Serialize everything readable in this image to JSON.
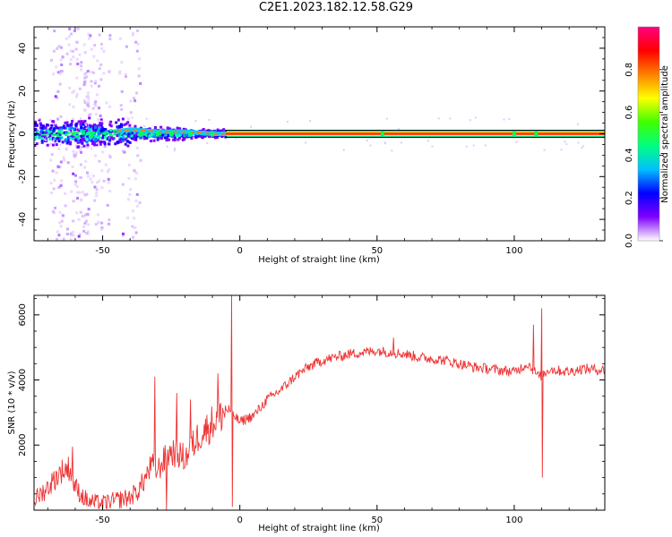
{
  "title": "C2E1.2023.182.12.58.G29",
  "chart_data": [
    {
      "type": "heatmap",
      "xlabel": "Height of straight line (km)",
      "ylabel": "Frequency (Hz)",
      "xlim": [
        -75,
        133
      ],
      "ylim": [
        -50,
        50
      ],
      "xticks": [
        -50,
        0,
        50,
        100
      ],
      "yticks": [
        -40,
        -20,
        0,
        20,
        40
      ],
      "colorbar": {
        "label": "Normalized spectral amplitude",
        "range": [
          0,
          1
        ],
        "ticks": [
          "0.0",
          "0.2",
          "0.4",
          "0.6",
          "0.8"
        ],
        "colors": [
          "#ffffff",
          "#8000ff",
          "#0000ff",
          "#00c0ff",
          "#00ff80",
          "#40ff00",
          "#ffff00",
          "#ff8000",
          "#ff0000",
          "#ff0080"
        ]
      },
      "ridge": {
        "x": [
          -75,
          -60,
          -50,
          -40,
          -30,
          -20,
          -10,
          -5,
          0,
          50,
          100,
          133
        ],
        "frequency": [
          0,
          0,
          0,
          2,
          1,
          1,
          0,
          0,
          0,
          0,
          0,
          0
        ]
      },
      "high_amplitude_from_x": -5
    },
    {
      "type": "line",
      "xlabel": "Height of straight line (km)",
      "ylabel": "SNR (10 * v/v)",
      "xlim": [
        -75,
        133
      ],
      "ylim": [
        0,
        6600
      ],
      "xticks": [
        -50,
        0,
        50,
        100
      ],
      "yticks": [
        2000,
        4000,
        6000
      ],
      "color": "#ee3333",
      "series": [
        {
          "x": [
            -75,
            -70,
            -65,
            -62,
            -60,
            -57,
            -55,
            -50,
            -45,
            -40,
            -37,
            -35,
            -32,
            -30,
            -28,
            -25,
            -22,
            -20,
            -17,
            -15,
            -12,
            -10,
            -8,
            -6,
            -4,
            -3,
            -2,
            0,
            2,
            5,
            8,
            10,
            15,
            20,
            25,
            30,
            35,
            40,
            45,
            50,
            55,
            60,
            65,
            70,
            75,
            80,
            85,
            90,
            95,
            100,
            103,
            105,
            107,
            109,
            111,
            113,
            115,
            120,
            125,
            133
          ],
          "y": [
            300,
            700,
            1200,
            1300,
            700,
            400,
            250,
            200,
            300,
            400,
            600,
            900,
            1400,
            1200,
            1500,
            1800,
            1700,
            1600,
            2000,
            2300,
            2500,
            2700,
            2800,
            3000,
            3100,
            3000,
            2900,
            2700,
            2800,
            2900,
            3200,
            3400,
            3700,
            4100,
            4400,
            4600,
            4700,
            4800,
            4850,
            4900,
            4850,
            4800,
            4700,
            4650,
            4600,
            4500,
            4400,
            4350,
            4300,
            4250,
            4400,
            4500,
            4300,
            4100,
            4200,
            4350,
            4300,
            4250,
            4350,
            4300
          ]
        }
      ],
      "spikes": [
        {
          "x": -61,
          "y": 1950
        },
        {
          "x": -31,
          "y": 4100
        },
        {
          "x": -23,
          "y": 3600
        },
        {
          "x": -18,
          "y": 3400
        },
        {
          "x": -8,
          "y": 4200
        },
        {
          "x": -3,
          "y": 6600
        },
        {
          "x": 56,
          "y": 5300
        },
        {
          "x": 107,
          "y": 5700
        },
        {
          "x": 110,
          "y": 6200
        }
      ],
      "dips": [
        {
          "x": -3,
          "y": 100
        },
        {
          "x": -27,
          "y": 0
        },
        {
          "x": 110,
          "y": 1000
        }
      ]
    }
  ]
}
